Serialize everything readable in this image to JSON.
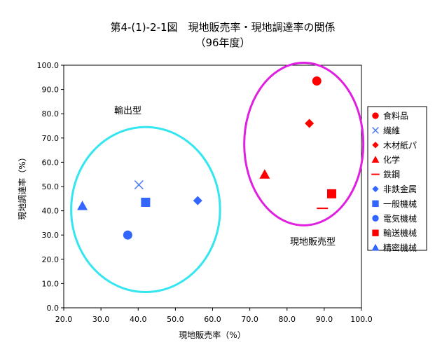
{
  "chart_data": {
    "type": "scatter",
    "title": "第4-(1)-2-1図　現地販売率・現地調達率の関係",
    "subtitle": "（96年度）",
    "xlabel": "現地販売率（%）",
    "ylabel": "現地調達率（%）",
    "xlim": [
      20,
      100
    ],
    "ylim": [
      0,
      100
    ],
    "x_ticks": [
      "20.0",
      "30.0",
      "40.0",
      "50.0",
      "60.0",
      "70.0",
      "80.0",
      "90.0",
      "100.0"
    ],
    "y_ticks": [
      "0.0",
      "10.0",
      "20.0",
      "30.0",
      "40.0",
      "50.0",
      "60.0",
      "70.0",
      "80.0",
      "90.0",
      "100.0"
    ],
    "grid": false,
    "legend_position": "right",
    "series": [
      {
        "name": "食料品",
        "marker": "circle",
        "color": "#ff0000",
        "x": 88.0,
        "y": 93.5
      },
      {
        "name": "繊維",
        "marker": "x",
        "color": "#4f7cf0",
        "x": 40.2,
        "y": 50.7
      },
      {
        "name": "木材紙パ",
        "marker": "diamond",
        "color": "#ff0000",
        "x": 86.0,
        "y": 76.0
      },
      {
        "name": "化学",
        "marker": "triangle",
        "color": "#ff0000",
        "x": 74.0,
        "y": 55.0
      },
      {
        "name": "鉄鋼",
        "marker": "dash",
        "color": "#ff0000",
        "x": 89.5,
        "y": 41.0
      },
      {
        "name": "非鉄金属",
        "marker": "diamond",
        "color": "#3366ff",
        "x": 56.0,
        "y": 44.2
      },
      {
        "name": "一般機械",
        "marker": "square",
        "color": "#3366ff",
        "x": 42.0,
        "y": 43.5
      },
      {
        "name": "電気機械",
        "marker": "circle",
        "color": "#3366ff",
        "x": 37.2,
        "y": 30.0
      },
      {
        "name": "輸送機械",
        "marker": "square",
        "color": "#ff0000",
        "x": 92.0,
        "y": 47.0
      },
      {
        "name": "精密機械",
        "marker": "triangle",
        "color": "#3366ff",
        "x": 25.0,
        "y": 42.0
      }
    ],
    "annotations": [
      {
        "text": "輸出型"
      },
      {
        "text": "現地販売型"
      }
    ],
    "groups": [
      {
        "name": "輸出型",
        "color": "#33e6f0",
        "cx": 42.0,
        "cy": 40.5,
        "rx": 20.0,
        "ry": 34.0
      },
      {
        "name": "現地販売型",
        "color": "#e020e0",
        "cx": 84.5,
        "cy": 67.5,
        "rx": 16.0,
        "ry": 33.5
      }
    ]
  }
}
